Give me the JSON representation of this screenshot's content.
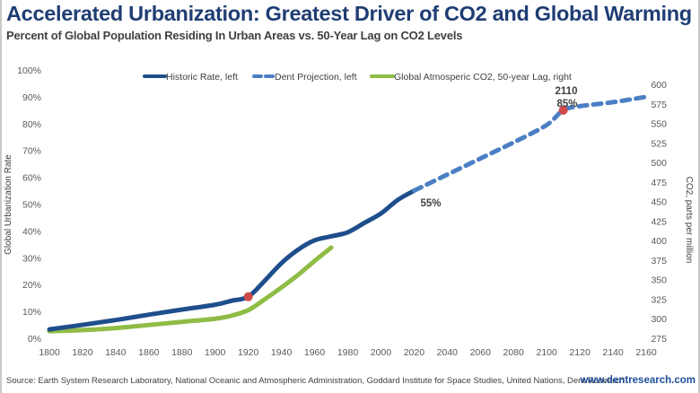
{
  "header": {
    "title": "Accelerated Urbanization: Greatest Driver of CO2 and Global Warming",
    "subtitle": "Percent of Global Population Residing In Urban Areas vs. 50-Year Lag on CO2 Levels"
  },
  "footer": {
    "source": "Source: Earth System Research Laboratory, National Oceanic and Atmospheric Administration, Goddard Institute for Space Studies, United Nations, Dent Research",
    "website": "www.dentresearch.com"
  },
  "chart_data": {
    "type": "line",
    "title": "Accelerated Urbanization: Greatest Driver of CO2 and Global Warming",
    "subtitle": "Percent of Global Population Residing In Urban Areas vs. 50-Year Lag on CO2 Levels",
    "xlabel": "",
    "ylabel": "Global Urbanization Rate",
    "ylabel_right": "CO2, parts per million",
    "xlim": [
      1800,
      2160
    ],
    "ylim": [
      0,
      100
    ],
    "ylim_right": [
      275,
      600
    ],
    "x_ticks": [
      "1800",
      "1820",
      "1840",
      "1860",
      "1880",
      "1900",
      "1920",
      "1940",
      "1960",
      "1980",
      "2000",
      "2020",
      "2040",
      "2060",
      "2080",
      "2100",
      "2120",
      "2140",
      "2160"
    ],
    "y_ticks": [
      "0%",
      "10%",
      "20%",
      "30%",
      "40%",
      "50%",
      "60%",
      "70%",
      "80%",
      "90%",
      "100%"
    ],
    "y_ticks_right": [
      "275",
      "300",
      "325",
      "350",
      "375",
      "400",
      "425",
      "450",
      "475",
      "500",
      "525",
      "550",
      "575",
      "600"
    ],
    "grid": false,
    "legend_position": "top",
    "colors": {
      "historic": "#1f4e8c",
      "projection": "#4a7fc4",
      "co2": "#8fbc45",
      "marker": "#d04a4a"
    },
    "series": [
      {
        "name": "Historic Rate, left",
        "axis": "left",
        "style": "solid",
        "x": [
          1800,
          1820,
          1840,
          1860,
          1880,
          1900,
          1910,
          1920,
          1930,
          1940,
          1950,
          1960,
          1970,
          1980,
          1990,
          2000,
          2010,
          2020
        ],
        "values": [
          3.3,
          5,
          6.8,
          8.8,
          10.7,
          12.5,
          14,
          15.5,
          21.5,
          28,
          33,
          36.5,
          38,
          39.5,
          43,
          46.5,
          51.5,
          55
        ]
      },
      {
        "name": "Dent Projection, left",
        "axis": "left",
        "style": "dashed",
        "x": [
          2020,
          2040,
          2060,
          2080,
          2100,
          2110,
          2120,
          2140,
          2160
        ],
        "values": [
          55,
          61,
          67,
          73,
          79.5,
          85,
          86.5,
          88,
          90
        ]
      },
      {
        "name": "Global Atmosperic CO2, 50-year Lag, right",
        "axis": "right",
        "style": "solid",
        "x": [
          1800,
          1820,
          1840,
          1860,
          1880,
          1900,
          1910,
          1920,
          1930,
          1940,
          1950,
          1960,
          1970
        ],
        "values": [
          284,
          285.5,
          288,
          292,
          296,
          300,
          304,
          311,
          325,
          340,
          356,
          374,
          391
        ]
      }
    ],
    "markers": [
      {
        "x": 1920,
        "value": 15.5,
        "axis": "left"
      },
      {
        "x": 2110,
        "value": 85,
        "axis": "left"
      }
    ],
    "annotations": [
      {
        "text": "2110",
        "x": 2110,
        "value": 85
      },
      {
        "text": "85%",
        "x": 2110,
        "value": 85
      },
      {
        "text": "55%",
        "x": 2020,
        "value": 55
      }
    ]
  }
}
